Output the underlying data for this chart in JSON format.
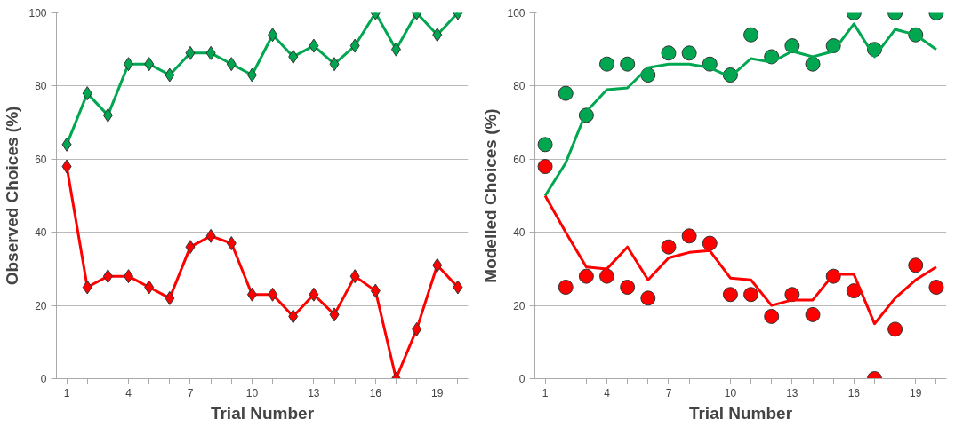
{
  "chart_data": [
    {
      "type": "line",
      "xlabel": "Trial Number",
      "ylabel": "Observed Choices (%)",
      "x": [
        1,
        2,
        3,
        4,
        5,
        6,
        7,
        8,
        9,
        10,
        11,
        12,
        13,
        14,
        15,
        16,
        17,
        18,
        19,
        20
      ],
      "xlim": [
        0.5,
        20.5
      ],
      "ylim": [
        0,
        100
      ],
      "yticks": [
        0,
        20,
        40,
        60,
        80,
        100
      ],
      "xticks": [
        1,
        {
          "value": 2,
          "label": null
        },
        {
          "value": 3,
          "label": null
        },
        4,
        {
          "value": 5,
          "label": null
        },
        {
          "value": 6,
          "label": null
        },
        7,
        {
          "value": 8,
          "label": null
        },
        {
          "value": 9,
          "label": null
        },
        10,
        {
          "value": 11,
          "label": null
        },
        {
          "value": 12,
          "label": null
        },
        13,
        {
          "value": 14,
          "label": null
        },
        {
          "value": 15,
          "label": null
        },
        16,
        {
          "value": 17,
          "label": null
        },
        {
          "value": 18,
          "label": null
        },
        19,
        {
          "value": 20,
          "label": null
        }
      ],
      "grid": "y",
      "marker": "diamond",
      "line_style": "solid",
      "series": [
        {
          "color": "#00a650",
          "values": [
            64,
            78,
            72,
            86,
            86,
            83,
            89,
            89,
            86,
            83,
            94,
            88,
            91,
            86,
            91,
            100,
            90,
            100,
            94,
            100
          ]
        },
        {
          "color": "#ff0000",
          "values": [
            58,
            25,
            28,
            28,
            25,
            22,
            36,
            39,
            37,
            23,
            23,
            17,
            23,
            17.5,
            28,
            24,
            0,
            13.5,
            31,
            25
          ]
        }
      ]
    },
    {
      "type": "line",
      "xlabel": "Trial Number",
      "ylabel": "Modelled Choices (%)",
      "x": [
        1,
        2,
        3,
        4,
        5,
        6,
        7,
        8,
        9,
        10,
        11,
        12,
        13,
        14,
        15,
        16,
        17,
        18,
        19,
        20
      ],
      "xlim": [
        0.5,
        20.5
      ],
      "ylim": [
        0,
        100
      ],
      "yticks": [
        0,
        20,
        40,
        60,
        80,
        100
      ],
      "xticks": [
        1,
        {
          "value": 2,
          "label": null
        },
        {
          "value": 3,
          "label": null
        },
        4,
        {
          "value": 5,
          "label": null
        },
        {
          "value": 6,
          "label": null
        },
        7,
        {
          "value": 8,
          "label": null
        },
        {
          "value": 9,
          "label": null
        },
        10,
        {
          "value": 11,
          "label": null
        },
        {
          "value": 12,
          "label": null
        },
        13,
        {
          "value": 14,
          "label": null
        },
        {
          "value": 15,
          "label": null
        },
        16,
        {
          "value": 17,
          "label": null
        },
        {
          "value": 18,
          "label": null
        },
        19,
        {
          "value": 20,
          "label": null
        }
      ],
      "grid": "y",
      "series": [
        {
          "type": "scatter",
          "marker": "circle",
          "color": "#00a650",
          "values": [
            64,
            78,
            72,
            86,
            86,
            83,
            89,
            89,
            86,
            83,
            94,
            88,
            91,
            86,
            91,
            100,
            90,
            100,
            94,
            100
          ]
        },
        {
          "type": "scatter",
          "marker": "circle",
          "color": "#ff0000",
          "values": [
            58,
            25,
            28,
            28,
            25,
            22,
            36,
            39,
            37,
            23,
            23,
            17,
            23,
            17.5,
            28,
            24,
            0,
            13.5,
            31,
            25
          ]
        },
        {
          "type": "line",
          "marker": "none",
          "line_style": "solid",
          "color": "#00a650",
          "values": [
            50,
            59,
            73,
            79,
            79.5,
            85,
            86,
            86,
            85,
            82.5,
            87.5,
            86.5,
            89.5,
            88,
            89.5,
            97,
            88,
            95.5,
            94,
            90
          ]
        },
        {
          "type": "line",
          "marker": "none",
          "line_style": "solid",
          "color": "#ff0000",
          "values": [
            50,
            40,
            30.5,
            30,
            36,
            27,
            33,
            34.5,
            35,
            27.5,
            27,
            20,
            21.5,
            21.5,
            28.5,
            28.5,
            15,
            22,
            27,
            30.5
          ]
        }
      ]
    }
  ]
}
